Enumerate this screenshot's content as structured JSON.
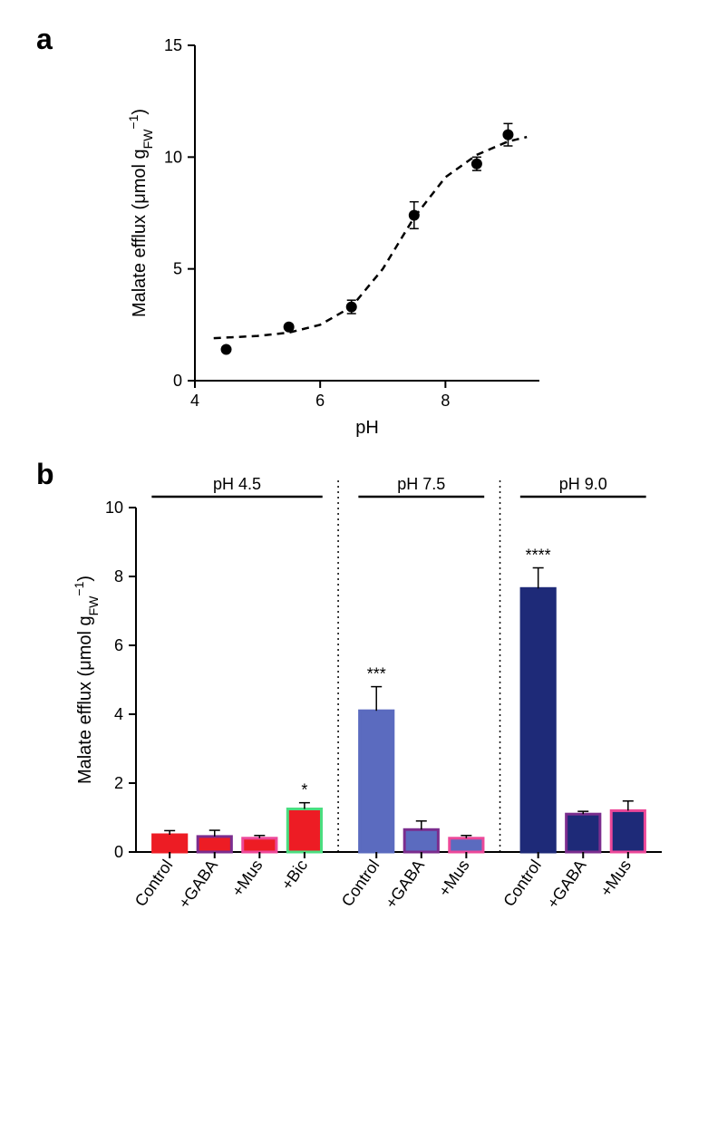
{
  "panelA": {
    "label": "a",
    "type": "scatter",
    "xlabel": "pH",
    "ylabel_parts": [
      "Malate efflux (μmol g",
      "FW",
      "−1",
      ")"
    ],
    "xlim": [
      4,
      9.5
    ],
    "ylim": [
      0,
      15
    ],
    "xticks": [
      4,
      6,
      8
    ],
    "yticks": [
      0,
      5,
      10,
      15
    ],
    "points": [
      {
        "x": 4.5,
        "y": 1.4,
        "err": 0.1
      },
      {
        "x": 5.5,
        "y": 2.4,
        "err": 0.1
      },
      {
        "x": 6.5,
        "y": 3.3,
        "err": 0.3
      },
      {
        "x": 7.5,
        "y": 7.4,
        "err": 0.6
      },
      {
        "x": 8.5,
        "y": 9.7,
        "err": 0.3
      },
      {
        "x": 9.0,
        "y": 11.0,
        "err": 0.5
      }
    ],
    "curve_points": [
      {
        "x": 4.3,
        "y": 1.9
      },
      {
        "x": 5.0,
        "y": 2.0
      },
      {
        "x": 5.5,
        "y": 2.15
      },
      {
        "x": 6.0,
        "y": 2.5
      },
      {
        "x": 6.5,
        "y": 3.3
      },
      {
        "x": 7.0,
        "y": 5.0
      },
      {
        "x": 7.5,
        "y": 7.3
      },
      {
        "x": 8.0,
        "y": 9.1
      },
      {
        "x": 8.5,
        "y": 10.1
      },
      {
        "x": 9.0,
        "y": 10.7
      },
      {
        "x": 9.3,
        "y": 10.9
      }
    ],
    "background_color": "#ffffff",
    "point_color": "#000000",
    "point_radius": 6,
    "label_fontsize": 20,
    "tick_fontsize": 18
  },
  "panelB": {
    "label": "b",
    "type": "bar",
    "ylabel_parts": [
      "Malate efflux (μmol g",
      "FW",
      "−1",
      ")"
    ],
    "ylim": [
      0,
      10
    ],
    "yticks": [
      0,
      2,
      4,
      6,
      8,
      10
    ],
    "groups": [
      {
        "title": "pH 4.5",
        "bars": [
          {
            "label": "Control",
            "value": 0.5,
            "err": 0.12,
            "fill": "#ed1c24",
            "border": "#ed1c24",
            "sig": ""
          },
          {
            "label": "+GABA",
            "value": 0.45,
            "err": 0.18,
            "fill": "#ed1c24",
            "border": "#7b2d8e",
            "sig": ""
          },
          {
            "label": "+Mus",
            "value": 0.4,
            "err": 0.08,
            "fill": "#ed1c24",
            "border": "#ec4899",
            "sig": ""
          },
          {
            "label": "+Bic",
            "value": 1.25,
            "err": 0.18,
            "fill": "#ed1c24",
            "border": "#4ade80",
            "sig": "*"
          }
        ]
      },
      {
        "title": "pH 7.5",
        "bars": [
          {
            "label": "Control",
            "value": 4.1,
            "err": 0.7,
            "fill": "#5b6bbf",
            "border": "#5b6bbf",
            "sig": "***"
          },
          {
            "label": "+GABA",
            "value": 0.65,
            "err": 0.25,
            "fill": "#5b6bbf",
            "border": "#7b2d8e",
            "sig": ""
          },
          {
            "label": "+Mus",
            "value": 0.4,
            "err": 0.08,
            "fill": "#5b6bbf",
            "border": "#ec4899",
            "sig": ""
          }
        ]
      },
      {
        "title": "pH 9.0",
        "bars": [
          {
            "label": "Control",
            "value": 7.65,
            "err": 0.6,
            "fill": "#1e2a78",
            "border": "#1e2a78",
            "sig": "****"
          },
          {
            "label": "+GABA",
            "value": 1.1,
            "err": 0.08,
            "fill": "#1e2a78",
            "border": "#7b2d8e",
            "sig": ""
          },
          {
            "label": "+Mus",
            "value": 1.2,
            "err": 0.28,
            "fill": "#1e2a78",
            "border": "#ec4899",
            "sig": ""
          }
        ]
      }
    ],
    "bar_width": 0.75,
    "border_width": 3,
    "label_fontsize": 20,
    "tick_fontsize": 18,
    "group_title_fontsize": 18,
    "sig_fontsize": 18,
    "divider_dash": "2 4"
  }
}
